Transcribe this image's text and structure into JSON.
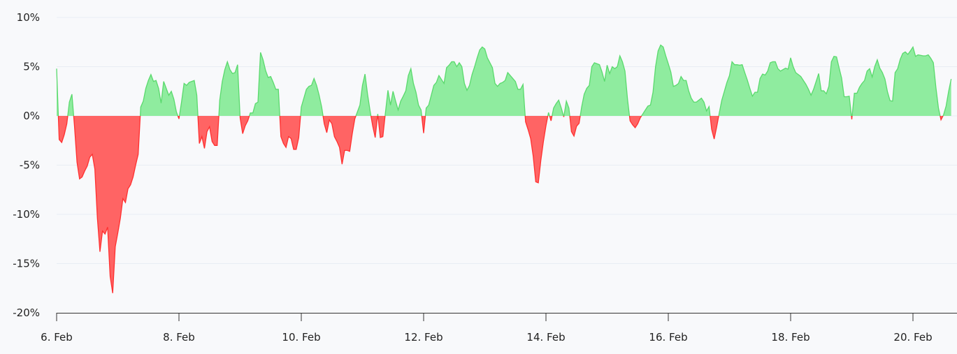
{
  "chart_data": {
    "type": "area",
    "title": "",
    "xlabel": "",
    "ylabel": "",
    "x_start": "6 Feb 00:00",
    "x_interval": "1 hour",
    "xlim": [
      "6 Feb 00:00",
      "20 Feb 15:00"
    ],
    "ylim": [
      -20,
      10
    ],
    "y_unit": "%",
    "grid": "horizontal",
    "colors": {
      "positive_fill": "#8fec9f",
      "positive_line": "#5ad96d",
      "negative_fill": "#ff6464",
      "negative_line": "#ff3030",
      "background": "#f8f9fb",
      "grid": "#e8edf4"
    },
    "y_ticks": [
      {
        "value": 10,
        "label": "10%"
      },
      {
        "value": 5,
        "label": "5%"
      },
      {
        "value": 0,
        "label": "0%"
      },
      {
        "value": -5,
        "label": "-5%"
      },
      {
        "value": -10,
        "label": "-10%"
      },
      {
        "value": -15,
        "label": "-15%"
      },
      {
        "value": -20,
        "label": "-20%"
      }
    ],
    "x_ticks": [
      {
        "day": 6,
        "label": "6. Feb"
      },
      {
        "day": 8,
        "label": "8. Feb"
      },
      {
        "day": 10,
        "label": "10. Feb"
      },
      {
        "day": 12,
        "label": "12. Feb"
      },
      {
        "day": 14,
        "label": "14. Feb"
      },
      {
        "day": 16,
        "label": "16. Feb"
      },
      {
        "day": 18,
        "label": "18. Feb"
      },
      {
        "day": 20,
        "label": "20. Feb"
      }
    ],
    "values": [
      4.8,
      -2.4,
      -2.7,
      -1.9,
      -0.8,
      1.4,
      2.2,
      -1.0,
      -4.7,
      -6.4,
      -6.2,
      -5.6,
      -5.1,
      -4.2,
      -3.9,
      -5.4,
      -10.4,
      -13.8,
      -11.7,
      -12.0,
      -11.3,
      -16.3,
      -18.0,
      -13.3,
      -11.9,
      -10.4,
      -8.4,
      -8.8,
      -7.4,
      -7.0,
      -6.2,
      -5.0,
      -3.9,
      0.9,
      1.5,
      2.8,
      3.6,
      4.2,
      3.5,
      3.6,
      2.8,
      1.3,
      3.5,
      2.8,
      2.1,
      2.5,
      1.7,
      0.4,
      -0.3,
      1.4,
      3.3,
      3.1,
      3.4,
      3.5,
      3.6,
      2.1,
      -2.8,
      -2.1,
      -3.3,
      -1.6,
      -1.1,
      -2.6,
      -3.0,
      -3.0,
      1.6,
      3.5,
      4.7,
      5.5,
      4.7,
      4.3,
      4.4,
      5.2,
      -0.2,
      -1.8,
      -1.0,
      -0.5,
      0.3,
      0.3,
      1.25,
      1.4,
      6.45,
      5.7,
      4.6,
      3.9,
      4.0,
      3.4,
      2.7,
      2.7,
      -2.1,
      -2.8,
      -3.2,
      -2.1,
      -2.3,
      -3.4,
      -3.4,
      -2.2,
      0.9,
      1.8,
      2.7,
      3.0,
      3.1,
      3.8,
      3.1,
      2.1,
      0.9,
      -0.8,
      -1.7,
      -0.4,
      -0.8,
      -2.1,
      -2.6,
      -3.2,
      -4.9,
      -3.5,
      -3.5,
      -3.6,
      -1.8,
      -0.3,
      0.4,
      1.1,
      3.1,
      4.25,
      2.2,
      0.5,
      -1.0,
      -2.2,
      0.2,
      -2.2,
      -2.1,
      0.3,
      2.6,
      1.1,
      2.5,
      1.5,
      0.6,
      1.5,
      2.0,
      2.55,
      4.1,
      4.8,
      3.3,
      2.4,
      1.1,
      0.6,
      -1.75,
      0.8,
      1.1,
      2.1,
      3.1,
      3.4,
      4.1,
      3.7,
      3.3,
      4.9,
      5.15,
      5.5,
      5.5,
      5.0,
      5.4,
      5.0,
      3.3,
      2.6,
      3.1,
      4.2,
      5.0,
      5.9,
      6.7,
      7.0,
      6.8,
      5.9,
      5.4,
      4.9,
      3.3,
      3.0,
      3.3,
      3.4,
      3.6,
      4.4,
      4.1,
      3.8,
      3.5,
      2.7,
      2.7,
      3.2,
      -0.6,
      -1.4,
      -2.3,
      -4.1,
      -6.7,
      -6.8,
      -4.5,
      -2.6,
      -1.0,
      0.35,
      -0.5,
      0.8,
      1.25,
      1.6,
      0.8,
      -0.1,
      1.5,
      0.8,
      -1.6,
      -2.05,
      -1.05,
      -0.75,
      0.9,
      2.2,
      2.8,
      3.1,
      5.0,
      5.4,
      5.3,
      5.2,
      4.45,
      3.5,
      5.15,
      4.3,
      5.0,
      4.8,
      5.0,
      6.1,
      5.5,
      4.55,
      1.7,
      -0.5,
      -0.9,
      -1.2,
      -0.8,
      -0.2,
      0.2,
      0.6,
      1.0,
      1.1,
      2.4,
      5.0,
      6.6,
      7.2,
      7.0,
      6.1,
      5.3,
      4.45,
      3.0,
      3.1,
      3.3,
      4.0,
      3.6,
      3.6,
      2.55,
      1.8,
      1.4,
      1.4,
      1.6,
      1.8,
      1.4,
      0.5,
      0.95,
      -1.35,
      -2.35,
      -1.1,
      0.3,
      1.6,
      2.5,
      3.4,
      4.1,
      5.5,
      5.2,
      5.2,
      5.15,
      5.2,
      4.4,
      3.65,
      2.8,
      2.0,
      2.4,
      2.4,
      3.8,
      4.25,
      4.15,
      4.55,
      5.4,
      5.5,
      5.5,
      4.8,
      4.55,
      4.7,
      4.85,
      4.75,
      5.9,
      5.0,
      4.4,
      4.2,
      4.0,
      3.6,
      3.2,
      2.7,
      2.1,
      2.7,
      3.5,
      4.3,
      2.55,
      2.55,
      2.25,
      3.0,
      5.5,
      6.05,
      6.0,
      4.9,
      3.85,
      1.95,
      1.95,
      2.0,
      -0.35,
      2.3,
      2.3,
      2.9,
      3.3,
      3.6,
      4.55,
      4.8,
      3.95,
      5.0,
      5.7,
      4.85,
      4.4,
      3.75,
      2.45,
      1.55,
      1.5,
      4.4,
      4.8,
      5.75,
      6.35,
      6.5,
      6.25,
      6.6,
      7.0,
      6.05,
      6.2,
      6.15,
      6.1,
      6.1,
      6.2,
      5.85,
      5.4,
      2.9,
      0.8,
      -0.4,
      0.1,
      1.0,
      2.5,
      3.75
    ]
  }
}
